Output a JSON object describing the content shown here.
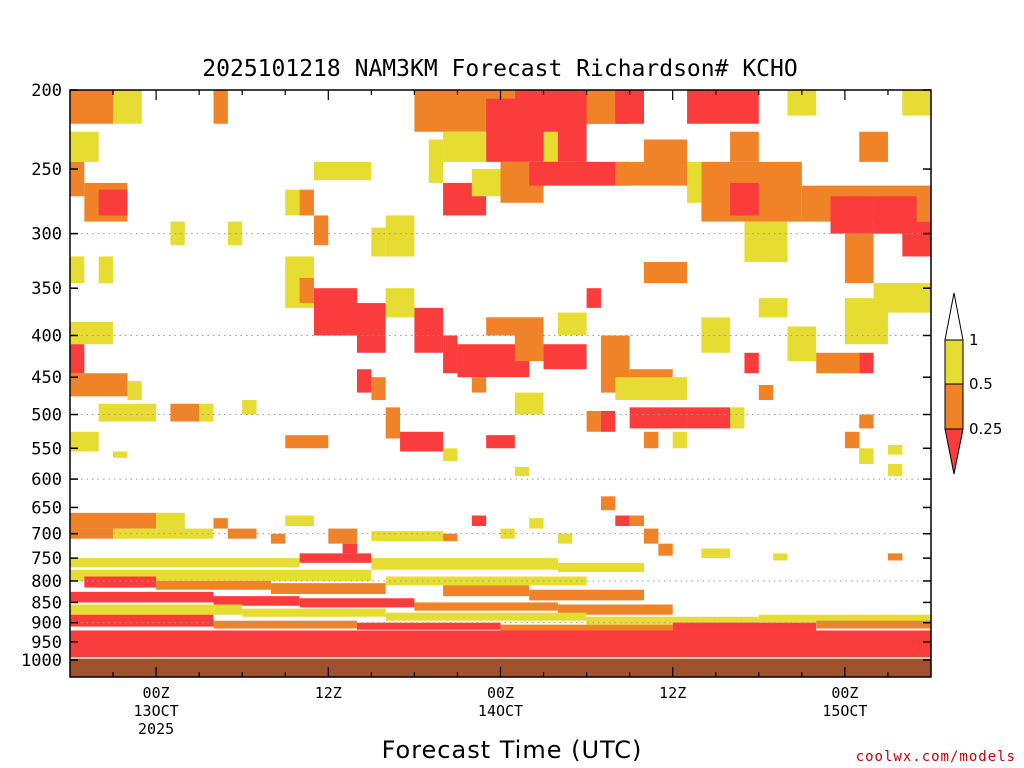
{
  "chart_data": {
    "type": "heatmap",
    "title": "2025101218 NAM3KM Forecast Richardson# KCHO",
    "xlabel": "Forecast Time (UTC)",
    "ylabel": "",
    "credit": "coolwx.com/models",
    "y_scale": "log-pressure",
    "y_range": [
      1000,
      200
    ],
    "y_ticks": [
      200,
      250,
      300,
      350,
      400,
      450,
      500,
      550,
      600,
      650,
      700,
      750,
      800,
      850,
      900,
      950,
      1000
    ],
    "y_grid_levels": [
      300,
      400,
      500,
      600,
      700,
      800,
      900
    ],
    "grid": "dotted horizontal",
    "x_range_hours": [
      -6,
      54
    ],
    "x_ticks": [
      {
        "hour": 0,
        "lines": [
          "00Z",
          "13OCT",
          "2025"
        ]
      },
      {
        "hour": 12,
        "lines": [
          "12Z"
        ]
      },
      {
        "hour": 24,
        "lines": [
          "00Z",
          "14OCT"
        ]
      },
      {
        "hour": 36,
        "lines": [
          "12Z"
        ]
      },
      {
        "hour": 48,
        "lines": [
          "00Z",
          "15OCT"
        ]
      }
    ],
    "colorbar": {
      "levels": [
        "0.25",
        "0.5",
        "1"
      ],
      "colors": [
        "#fa3c3c",
        "#f08228",
        "#e6dc32",
        "#ffffff"
      ],
      "extend": "both",
      "placement": "right"
    },
    "ground_color": "#a0522d",
    "ground_top_hpa": 990,
    "bins": [
      {
        "h0": -6,
        "h1": -3,
        "p0": 200,
        "p1": 220,
        "c": 1
      },
      {
        "h0": -3,
        "h1": -1,
        "p0": 200,
        "p1": 220,
        "c": 2
      },
      {
        "h0": 4,
        "h1": 5,
        "p0": 200,
        "p1": 220,
        "c": 1
      },
      {
        "h0": 18,
        "h1": 25,
        "p0": 200,
        "p1": 225,
        "c": 1
      },
      {
        "h0": 20,
        "h1": 23,
        "p0": 225,
        "p1": 245,
        "c": 2
      },
      {
        "h0": 23,
        "h1": 30,
        "p0": 205,
        "p1": 245,
        "c": 0
      },
      {
        "h0": 25,
        "h1": 33,
        "p0": 200,
        "p1": 220,
        "c": 0
      },
      {
        "h0": 27,
        "h1": 28,
        "p0": 225,
        "p1": 245,
        "c": 2
      },
      {
        "h0": 30,
        "h1": 32,
        "p0": 200,
        "p1": 220,
        "c": 1
      },
      {
        "h0": 32,
        "h1": 34,
        "p0": 200,
        "p1": 220,
        "c": 0
      },
      {
        "h0": 34,
        "h1": 37,
        "p0": 230,
        "p1": 260,
        "c": 1
      },
      {
        "h0": 37,
        "h1": 42,
        "p0": 200,
        "p1": 220,
        "c": 0
      },
      {
        "h0": 40,
        "h1": 42,
        "p0": 225,
        "p1": 245,
        "c": 1
      },
      {
        "h0": 44,
        "h1": 46,
        "p0": 200,
        "p1": 215,
        "c": 2
      },
      {
        "h0": 49,
        "h1": 51,
        "p0": 225,
        "p1": 245,
        "c": 1
      },
      {
        "h0": 52,
        "h1": 54,
        "p0": 200,
        "p1": 215,
        "c": 2
      },
      {
        "h0": -6,
        "h1": -4,
        "p0": 225,
        "p1": 245,
        "c": 2
      },
      {
        "h0": 11,
        "h1": 15,
        "p0": 245,
        "p1": 258,
        "c": 2
      },
      {
        "h0": 19,
        "h1": 20,
        "p0": 230,
        "p1": 260,
        "c": 2
      },
      {
        "h0": 20,
        "h1": 23,
        "p0": 260,
        "p1": 285,
        "c": 0
      },
      {
        "h0": 22,
        "h1": 25,
        "p0": 250,
        "p1": 270,
        "c": 2
      },
      {
        "h0": 24,
        "h1": 27,
        "p0": 245,
        "p1": 275,
        "c": 1
      },
      {
        "h0": 26,
        "h1": 33,
        "p0": 245,
        "p1": 262,
        "c": 0
      },
      {
        "h0": 32,
        "h1": 37,
        "p0": 245,
        "p1": 262,
        "c": 1
      },
      {
        "h0": 37,
        "h1": 38,
        "p0": 245,
        "p1": 275,
        "c": 2
      },
      {
        "h0": 38,
        "h1": 45,
        "p0": 245,
        "p1": 290,
        "c": 1
      },
      {
        "h0": 40,
        "h1": 42,
        "p0": 260,
        "p1": 285,
        "c": 0
      },
      {
        "h0": 45,
        "h1": 54,
        "p0": 262,
        "p1": 290,
        "c": 1
      },
      {
        "h0": 47,
        "h1": 50,
        "p0": 270,
        "p1": 300,
        "c": 0
      },
      {
        "h0": 50,
        "h1": 53,
        "p0": 270,
        "p1": 300,
        "c": 0
      },
      {
        "h0": 52,
        "h1": 54,
        "p0": 290,
        "p1": 320,
        "c": 0
      },
      {
        "h0": -6,
        "h1": -5,
        "p0": 245,
        "p1": 270,
        "c": 1
      },
      {
        "h0": -5,
        "h1": -2,
        "p0": 260,
        "p1": 290,
        "c": 1
      },
      {
        "h0": -4,
        "h1": -2,
        "p0": 265,
        "p1": 285,
        "c": 0
      },
      {
        "h0": 9,
        "h1": 10,
        "p0": 265,
        "p1": 285,
        "c": 2
      },
      {
        "h0": 10,
        "h1": 11,
        "p0": 265,
        "p1": 285,
        "c": 1
      },
      {
        "h0": 11,
        "h1": 12,
        "p0": 285,
        "p1": 310,
        "c": 1
      },
      {
        "h0": 1,
        "h1": 2,
        "p0": 290,
        "p1": 310,
        "c": 2
      },
      {
        "h0": 5,
        "h1": 6,
        "p0": 290,
        "p1": 310,
        "c": 2
      },
      {
        "h0": 15,
        "h1": 16,
        "p0": 295,
        "p1": 320,
        "c": 2
      },
      {
        "h0": 16,
        "h1": 18,
        "p0": 285,
        "p1": 320,
        "c": 2
      },
      {
        "h0": 41,
        "h1": 44,
        "p0": 290,
        "p1": 325,
        "c": 2
      },
      {
        "h0": 48,
        "h1": 50,
        "p0": 300,
        "p1": 345,
        "c": 1
      },
      {
        "h0": -6,
        "h1": -5,
        "p0": 320,
        "p1": 345,
        "c": 2
      },
      {
        "h0": -4,
        "h1": -3,
        "p0": 320,
        "p1": 345,
        "c": 2
      },
      {
        "h0": 9,
        "h1": 11,
        "p0": 320,
        "p1": 370,
        "c": 2
      },
      {
        "h0": 10,
        "h1": 11,
        "p0": 340,
        "p1": 365,
        "c": 1
      },
      {
        "h0": 11,
        "h1": 14,
        "p0": 350,
        "p1": 400,
        "c": 0
      },
      {
        "h0": 14,
        "h1": 16,
        "p0": 365,
        "p1": 420,
        "c": 0
      },
      {
        "h0": 16,
        "h1": 18,
        "p0": 350,
        "p1": 380,
        "c": 2
      },
      {
        "h0": 18,
        "h1": 20,
        "p0": 370,
        "p1": 420,
        "c": 0
      },
      {
        "h0": 20,
        "h1": 21,
        "p0": 400,
        "p1": 445,
        "c": 0
      },
      {
        "h0": 21,
        "h1": 26,
        "p0": 410,
        "p1": 450,
        "c": 0
      },
      {
        "h0": 23,
        "h1": 27,
        "p0": 380,
        "p1": 400,
        "c": 1
      },
      {
        "h0": 25,
        "h1": 27,
        "p0": 390,
        "p1": 430,
        "c": 1
      },
      {
        "h0": 27,
        "h1": 30,
        "p0": 410,
        "p1": 440,
        "c": 0
      },
      {
        "h0": 28,
        "h1": 30,
        "p0": 375,
        "p1": 400,
        "c": 2
      },
      {
        "h0": 30,
        "h1": 31,
        "p0": 350,
        "p1": 370,
        "c": 0
      },
      {
        "h0": 31,
        "h1": 33,
        "p0": 400,
        "p1": 470,
        "c": 1
      },
      {
        "h0": 33,
        "h1": 36,
        "p0": 440,
        "p1": 480,
        "c": 1
      },
      {
        "h0": 32,
        "h1": 37,
        "p0": 450,
        "p1": 480,
        "c": 2
      },
      {
        "h0": 34,
        "h1": 37,
        "p0": 325,
        "p1": 345,
        "c": 1
      },
      {
        "h0": 38,
        "h1": 40,
        "p0": 380,
        "p1": 420,
        "c": 2
      },
      {
        "h0": 41,
        "h1": 42,
        "p0": 420,
        "p1": 445,
        "c": 0
      },
      {
        "h0": 42,
        "h1": 44,
        "p0": 360,
        "p1": 380,
        "c": 2
      },
      {
        "h0": 44,
        "h1": 46,
        "p0": 390,
        "p1": 430,
        "c": 2
      },
      {
        "h0": 46,
        "h1": 49,
        "p0": 420,
        "p1": 445,
        "c": 1
      },
      {
        "h0": 49,
        "h1": 50,
        "p0": 420,
        "p1": 445,
        "c": 0
      },
      {
        "h0": 48,
        "h1": 51,
        "p0": 360,
        "p1": 410,
        "c": 2
      },
      {
        "h0": 50,
        "h1": 54,
        "p0": 345,
        "p1": 375,
        "c": 2
      },
      {
        "h0": -6,
        "h1": -3,
        "p0": 385,
        "p1": 410,
        "c": 2
      },
      {
        "h0": -6,
        "h1": -5,
        "p0": 410,
        "p1": 445,
        "c": 0
      },
      {
        "h0": -6,
        "h1": -2,
        "p0": 445,
        "p1": 475,
        "c": 1
      },
      {
        "h0": -2,
        "h1": -1,
        "p0": 455,
        "p1": 480,
        "c": 2
      },
      {
        "h0": -4,
        "h1": 0,
        "p0": 485,
        "p1": 510,
        "c": 2
      },
      {
        "h0": 1,
        "h1": 3,
        "p0": 485,
        "p1": 510,
        "c": 1
      },
      {
        "h0": 3,
        "h1": 4,
        "p0": 485,
        "p1": 510,
        "c": 2
      },
      {
        "h0": 6,
        "h1": 7,
        "p0": 480,
        "p1": 500,
        "c": 2
      },
      {
        "h0": 14,
        "h1": 15,
        "p0": 440,
        "p1": 470,
        "c": 0
      },
      {
        "h0": 15,
        "h1": 16,
        "p0": 450,
        "p1": 480,
        "c": 1
      },
      {
        "h0": 16,
        "h1": 17,
        "p0": 490,
        "p1": 535,
        "c": 1
      },
      {
        "h0": 17,
        "h1": 20,
        "p0": 525,
        "p1": 555,
        "c": 0
      },
      {
        "h0": 20,
        "h1": 21,
        "p0": 550,
        "p1": 570,
        "c": 2
      },
      {
        "h0": 23,
        "h1": 25,
        "p0": 530,
        "p1": 550,
        "c": 0
      },
      {
        "h0": 22,
        "h1": 23,
        "p0": 450,
        "p1": 470,
        "c": 1
      },
      {
        "h0": 25,
        "h1": 27,
        "p0": 470,
        "p1": 500,
        "c": 2
      },
      {
        "h0": 31,
        "h1": 32,
        "p0": 495,
        "p1": 525,
        "c": 0
      },
      {
        "h0": 30,
        "h1": 31,
        "p0": 495,
        "p1": 525,
        "c": 1
      },
      {
        "h0": 33,
        "h1": 37,
        "p0": 490,
        "p1": 520,
        "c": 0
      },
      {
        "h0": 37,
        "h1": 40,
        "p0": 490,
        "p1": 520,
        "c": 0
      },
      {
        "h0": 40,
        "h1": 41,
        "p0": 490,
        "p1": 520,
        "c": 2
      },
      {
        "h0": 42,
        "h1": 43,
        "p0": 460,
        "p1": 480,
        "c": 1
      },
      {
        "h0": 34,
        "h1": 35,
        "p0": 525,
        "p1": 550,
        "c": 1
      },
      {
        "h0": 36,
        "h1": 37,
        "p0": 525,
        "p1": 550,
        "c": 2
      },
      {
        "h0": 48,
        "h1": 49,
        "p0": 525,
        "p1": 550,
        "c": 1
      },
      {
        "h0": 49,
        "h1": 50,
        "p0": 500,
        "p1": 520,
        "c": 1
      },
      {
        "h0": 49,
        "h1": 50,
        "p0": 550,
        "p1": 575,
        "c": 2
      },
      {
        "h0": 51,
        "h1": 52,
        "p0": 545,
        "p1": 560,
        "c": 2
      },
      {
        "h0": 51,
        "h1": 52,
        "p0": 575,
        "p1": 595,
        "c": 2
      },
      {
        "h0": -6,
        "h1": -4,
        "p0": 525,
        "p1": 555,
        "c": 2
      },
      {
        "h0": -3,
        "h1": -2,
        "p0": 555,
        "p1": 565,
        "c": 2
      },
      {
        "h0": 9,
        "h1": 12,
        "p0": 530,
        "p1": 550,
        "c": 1
      },
      {
        "h0": 25,
        "h1": 26,
        "p0": 580,
        "p1": 595,
        "c": 2
      },
      {
        "h0": -6,
        "h1": 0,
        "p0": 660,
        "p1": 690,
        "c": 1
      },
      {
        "h0": -6,
        "h1": -3,
        "p0": 690,
        "p1": 710,
        "c": 1
      },
      {
        "h0": -3,
        "h1": 0,
        "p0": 690,
        "p1": 710,
        "c": 2
      },
      {
        "h0": 0,
        "h1": 4,
        "p0": 690,
        "p1": 710,
        "c": 2
      },
      {
        "h0": 0,
        "h1": 2,
        "p0": 660,
        "p1": 690,
        "c": 2
      },
      {
        "h0": 4,
        "h1": 5,
        "p0": 670,
        "p1": 690,
        "c": 1
      },
      {
        "h0": 5,
        "h1": 7,
        "p0": 690,
        "p1": 710,
        "c": 1
      },
      {
        "h0": 8,
        "h1": 9,
        "p0": 700,
        "p1": 720,
        "c": 1
      },
      {
        "h0": 9,
        "h1": 11,
        "p0": 665,
        "p1": 685,
        "c": 2
      },
      {
        "h0": 12,
        "h1": 14,
        "p0": 690,
        "p1": 720,
        "c": 1
      },
      {
        "h0": 13,
        "h1": 14,
        "p0": 720,
        "p1": 740,
        "c": 0
      },
      {
        "h0": 15,
        "h1": 20,
        "p0": 695,
        "p1": 715,
        "c": 2
      },
      {
        "h0": 20,
        "h1": 21,
        "p0": 700,
        "p1": 715,
        "c": 1
      },
      {
        "h0": 22,
        "h1": 23,
        "p0": 665,
        "p1": 685,
        "c": 0
      },
      {
        "h0": 24,
        "h1": 25,
        "p0": 690,
        "p1": 710,
        "c": 2
      },
      {
        "h0": 26,
        "h1": 27,
        "p0": 670,
        "p1": 690,
        "c": 2
      },
      {
        "h0": 28,
        "h1": 29,
        "p0": 700,
        "p1": 720,
        "c": 2
      },
      {
        "h0": 31,
        "h1": 32,
        "p0": 630,
        "p1": 655,
        "c": 1
      },
      {
        "h0": 32,
        "h1": 33,
        "p0": 665,
        "p1": 685,
        "c": 0
      },
      {
        "h0": 33,
        "h1": 34,
        "p0": 665,
        "p1": 685,
        "c": 1
      },
      {
        "h0": 34,
        "h1": 35,
        "p0": 690,
        "p1": 720,
        "c": 1
      },
      {
        "h0": 35,
        "h1": 36,
        "p0": 720,
        "p1": 745,
        "c": 1
      },
      {
        "h0": 38,
        "h1": 40,
        "p0": 730,
        "p1": 750,
        "c": 2
      },
      {
        "h0": 43,
        "h1": 44,
        "p0": 740,
        "p1": 755,
        "c": 2
      },
      {
        "h0": 51,
        "h1": 52,
        "p0": 740,
        "p1": 755,
        "c": 1
      },
      {
        "h0": -6,
        "h1": 10,
        "p0": 750,
        "p1": 770,
        "c": 2
      },
      {
        "h0": 10,
        "h1": 15,
        "p0": 740,
        "p1": 760,
        "c": 0
      },
      {
        "h0": 15,
        "h1": 28,
        "p0": 750,
        "p1": 775,
        "c": 2
      },
      {
        "h0": 28,
        "h1": 34,
        "p0": 760,
        "p1": 780,
        "c": 2
      },
      {
        "h0": -6,
        "h1": 15,
        "p0": 775,
        "p1": 800,
        "c": 2
      },
      {
        "h0": -5,
        "h1": 0,
        "p0": 790,
        "p1": 815,
        "c": 0
      },
      {
        "h0": 0,
        "h1": 8,
        "p0": 800,
        "p1": 820,
        "c": 1
      },
      {
        "h0": 8,
        "h1": 16,
        "p0": 805,
        "p1": 830,
        "c": 1
      },
      {
        "h0": 16,
        "h1": 30,
        "p0": 790,
        "p1": 810,
        "c": 2
      },
      {
        "h0": 20,
        "h1": 26,
        "p0": 810,
        "p1": 835,
        "c": 1
      },
      {
        "h0": 26,
        "h1": 34,
        "p0": 820,
        "p1": 845,
        "c": 1
      },
      {
        "h0": -6,
        "h1": 4,
        "p0": 825,
        "p1": 850,
        "c": 0
      },
      {
        "h0": 4,
        "h1": 10,
        "p0": 835,
        "p1": 858,
        "c": 0
      },
      {
        "h0": 10,
        "h1": 18,
        "p0": 840,
        "p1": 862,
        "c": 0
      },
      {
        "h0": 18,
        "h1": 28,
        "p0": 850,
        "p1": 870,
        "c": 1
      },
      {
        "h0": 28,
        "h1": 36,
        "p0": 855,
        "p1": 880,
        "c": 1
      },
      {
        "h0": -6,
        "h1": 6,
        "p0": 855,
        "p1": 880,
        "c": 2
      },
      {
        "h0": 6,
        "h1": 16,
        "p0": 865,
        "p1": 885,
        "c": 2
      },
      {
        "h0": 16,
        "h1": 30,
        "p0": 875,
        "p1": 895,
        "c": 2
      },
      {
        "h0": 30,
        "h1": 42,
        "p0": 885,
        "p1": 905,
        "c": 2
      },
      {
        "h0": 42,
        "h1": 54,
        "p0": 880,
        "p1": 900,
        "c": 2
      },
      {
        "h0": -6,
        "h1": 4,
        "p0": 880,
        "p1": 910,
        "c": 0
      },
      {
        "h0": 4,
        "h1": 14,
        "p0": 895,
        "p1": 915,
        "c": 1
      },
      {
        "h0": 14,
        "h1": 24,
        "p0": 900,
        "p1": 918,
        "c": 0
      },
      {
        "h0": 24,
        "h1": 36,
        "p0": 905,
        "p1": 925,
        "c": 1
      },
      {
        "h0": 36,
        "h1": 46,
        "p0": 900,
        "p1": 920,
        "c": 0
      },
      {
        "h0": 46,
        "h1": 54,
        "p0": 895,
        "p1": 915,
        "c": 1
      },
      {
        "h0": -6,
        "h1": 54,
        "p0": 920,
        "p1": 990,
        "c": 0
      }
    ]
  }
}
